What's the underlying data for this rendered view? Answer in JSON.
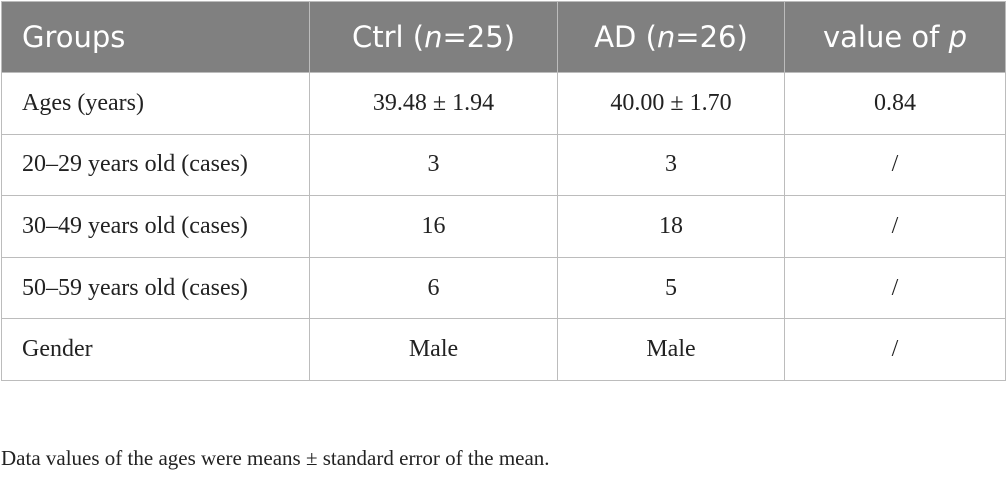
{
  "table": {
    "header": {
      "groups": "Groups",
      "ctrl": {
        "prefix": "Ctrl (",
        "n_var": "n",
        "suffix": "=25)"
      },
      "ad": {
        "prefix": "AD (",
        "n_var": "n",
        "suffix": "=26)"
      },
      "p": {
        "prefix": "value of ",
        "var": "p"
      }
    },
    "rows": [
      {
        "label": "Ages (years)",
        "ctrl": "39.48 ± 1.94",
        "ad": "40.00 ± 1.70",
        "p": "0.84"
      },
      {
        "label": "20–29 years old (cases)",
        "ctrl": "3",
        "ad": "3",
        "p": "/"
      },
      {
        "label": "30–49 years old (cases)",
        "ctrl": "16",
        "ad": "18",
        "p": "/"
      },
      {
        "label": "50–59 years old (cases)",
        "ctrl": "6",
        "ad": "5",
        "p": "/"
      },
      {
        "label": "Gender",
        "ctrl": "Male",
        "ad": "Male",
        "p": "/"
      }
    ]
  },
  "footnote": "Data values of the ages were means ± standard error of the mean.",
  "colors": {
    "header_bg": "#808080",
    "header_text": "#ffffff",
    "border": "#bcbcbc",
    "body_text": "#222222"
  }
}
